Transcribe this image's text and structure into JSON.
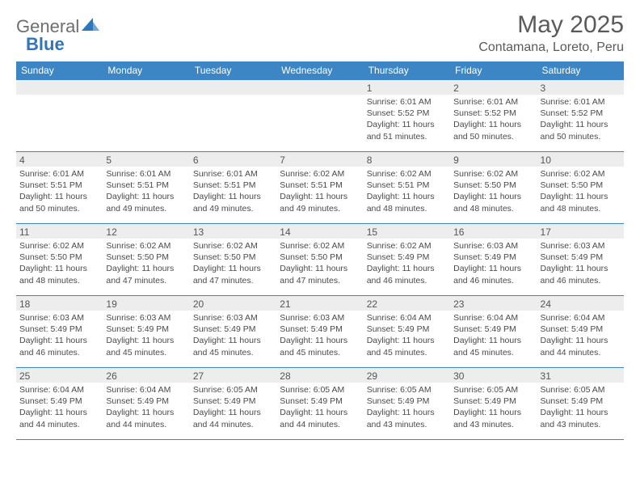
{
  "brand": {
    "part1": "General",
    "part2": "Blue"
  },
  "title": "May 2025",
  "location": "Contamana, Loreto, Peru",
  "colors": {
    "header_bg": "#3d86c6",
    "header_text": "#ffffff",
    "daynum_bg": "#ededed",
    "border": "#3d86c6",
    "brand_gray": "#6d6e71",
    "brand_blue": "#2f76bc"
  },
  "fonts": {
    "title_size": 30,
    "location_size": 16,
    "dow_size": 12,
    "body_size": 10.5
  },
  "daysOfWeek": [
    "Sunday",
    "Monday",
    "Tuesday",
    "Wednesday",
    "Thursday",
    "Friday",
    "Saturday"
  ],
  "weeks": [
    [
      null,
      null,
      null,
      null,
      {
        "n": "1",
        "sr": "Sunrise: 6:01 AM",
        "ss": "Sunset: 5:52 PM",
        "d1": "Daylight: 11 hours",
        "d2": "and 51 minutes."
      },
      {
        "n": "2",
        "sr": "Sunrise: 6:01 AM",
        "ss": "Sunset: 5:52 PM",
        "d1": "Daylight: 11 hours",
        "d2": "and 50 minutes."
      },
      {
        "n": "3",
        "sr": "Sunrise: 6:01 AM",
        "ss": "Sunset: 5:52 PM",
        "d1": "Daylight: 11 hours",
        "d2": "and 50 minutes."
      }
    ],
    [
      {
        "n": "4",
        "sr": "Sunrise: 6:01 AM",
        "ss": "Sunset: 5:51 PM",
        "d1": "Daylight: 11 hours",
        "d2": "and 50 minutes."
      },
      {
        "n": "5",
        "sr": "Sunrise: 6:01 AM",
        "ss": "Sunset: 5:51 PM",
        "d1": "Daylight: 11 hours",
        "d2": "and 49 minutes."
      },
      {
        "n": "6",
        "sr": "Sunrise: 6:01 AM",
        "ss": "Sunset: 5:51 PM",
        "d1": "Daylight: 11 hours",
        "d2": "and 49 minutes."
      },
      {
        "n": "7",
        "sr": "Sunrise: 6:02 AM",
        "ss": "Sunset: 5:51 PM",
        "d1": "Daylight: 11 hours",
        "d2": "and 49 minutes."
      },
      {
        "n": "8",
        "sr": "Sunrise: 6:02 AM",
        "ss": "Sunset: 5:51 PM",
        "d1": "Daylight: 11 hours",
        "d2": "and 48 minutes."
      },
      {
        "n": "9",
        "sr": "Sunrise: 6:02 AM",
        "ss": "Sunset: 5:50 PM",
        "d1": "Daylight: 11 hours",
        "d2": "and 48 minutes."
      },
      {
        "n": "10",
        "sr": "Sunrise: 6:02 AM",
        "ss": "Sunset: 5:50 PM",
        "d1": "Daylight: 11 hours",
        "d2": "and 48 minutes."
      }
    ],
    [
      {
        "n": "11",
        "sr": "Sunrise: 6:02 AM",
        "ss": "Sunset: 5:50 PM",
        "d1": "Daylight: 11 hours",
        "d2": "and 48 minutes."
      },
      {
        "n": "12",
        "sr": "Sunrise: 6:02 AM",
        "ss": "Sunset: 5:50 PM",
        "d1": "Daylight: 11 hours",
        "d2": "and 47 minutes."
      },
      {
        "n": "13",
        "sr": "Sunrise: 6:02 AM",
        "ss": "Sunset: 5:50 PM",
        "d1": "Daylight: 11 hours",
        "d2": "and 47 minutes."
      },
      {
        "n": "14",
        "sr": "Sunrise: 6:02 AM",
        "ss": "Sunset: 5:50 PM",
        "d1": "Daylight: 11 hours",
        "d2": "and 47 minutes."
      },
      {
        "n": "15",
        "sr": "Sunrise: 6:02 AM",
        "ss": "Sunset: 5:49 PM",
        "d1": "Daylight: 11 hours",
        "d2": "and 46 minutes."
      },
      {
        "n": "16",
        "sr": "Sunrise: 6:03 AM",
        "ss": "Sunset: 5:49 PM",
        "d1": "Daylight: 11 hours",
        "d2": "and 46 minutes."
      },
      {
        "n": "17",
        "sr": "Sunrise: 6:03 AM",
        "ss": "Sunset: 5:49 PM",
        "d1": "Daylight: 11 hours",
        "d2": "and 46 minutes."
      }
    ],
    [
      {
        "n": "18",
        "sr": "Sunrise: 6:03 AM",
        "ss": "Sunset: 5:49 PM",
        "d1": "Daylight: 11 hours",
        "d2": "and 46 minutes."
      },
      {
        "n": "19",
        "sr": "Sunrise: 6:03 AM",
        "ss": "Sunset: 5:49 PM",
        "d1": "Daylight: 11 hours",
        "d2": "and 45 minutes."
      },
      {
        "n": "20",
        "sr": "Sunrise: 6:03 AM",
        "ss": "Sunset: 5:49 PM",
        "d1": "Daylight: 11 hours",
        "d2": "and 45 minutes."
      },
      {
        "n": "21",
        "sr": "Sunrise: 6:03 AM",
        "ss": "Sunset: 5:49 PM",
        "d1": "Daylight: 11 hours",
        "d2": "and 45 minutes."
      },
      {
        "n": "22",
        "sr": "Sunrise: 6:04 AM",
        "ss": "Sunset: 5:49 PM",
        "d1": "Daylight: 11 hours",
        "d2": "and 45 minutes."
      },
      {
        "n": "23",
        "sr": "Sunrise: 6:04 AM",
        "ss": "Sunset: 5:49 PM",
        "d1": "Daylight: 11 hours",
        "d2": "and 45 minutes."
      },
      {
        "n": "24",
        "sr": "Sunrise: 6:04 AM",
        "ss": "Sunset: 5:49 PM",
        "d1": "Daylight: 11 hours",
        "d2": "and 44 minutes."
      }
    ],
    [
      {
        "n": "25",
        "sr": "Sunrise: 6:04 AM",
        "ss": "Sunset: 5:49 PM",
        "d1": "Daylight: 11 hours",
        "d2": "and 44 minutes."
      },
      {
        "n": "26",
        "sr": "Sunrise: 6:04 AM",
        "ss": "Sunset: 5:49 PM",
        "d1": "Daylight: 11 hours",
        "d2": "and 44 minutes."
      },
      {
        "n": "27",
        "sr": "Sunrise: 6:05 AM",
        "ss": "Sunset: 5:49 PM",
        "d1": "Daylight: 11 hours",
        "d2": "and 44 minutes."
      },
      {
        "n": "28",
        "sr": "Sunrise: 6:05 AM",
        "ss": "Sunset: 5:49 PM",
        "d1": "Daylight: 11 hours",
        "d2": "and 44 minutes."
      },
      {
        "n": "29",
        "sr": "Sunrise: 6:05 AM",
        "ss": "Sunset: 5:49 PM",
        "d1": "Daylight: 11 hours",
        "d2": "and 43 minutes."
      },
      {
        "n": "30",
        "sr": "Sunrise: 6:05 AM",
        "ss": "Sunset: 5:49 PM",
        "d1": "Daylight: 11 hours",
        "d2": "and 43 minutes."
      },
      {
        "n": "31",
        "sr": "Sunrise: 6:05 AM",
        "ss": "Sunset: 5:49 PM",
        "d1": "Daylight: 11 hours",
        "d2": "and 43 minutes."
      }
    ]
  ]
}
